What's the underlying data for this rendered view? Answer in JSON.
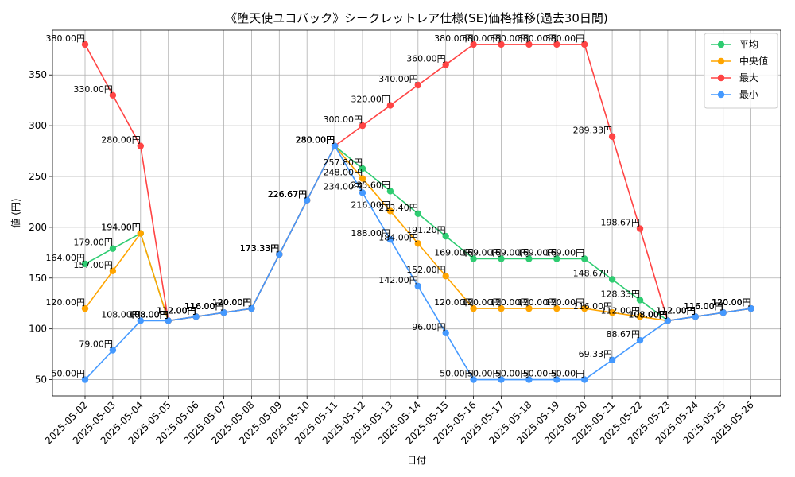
{
  "chart_data": {
    "type": "line",
    "title": "《堕天使ユコバック》シークレットレア仕様(SE)価格推移(過去30日間)",
    "xlabel": "日付",
    "ylabel": "値 (円)",
    "ylim": [
      34,
      394
    ],
    "yticks": [
      50,
      100,
      150,
      200,
      250,
      300,
      350
    ],
    "grid": true,
    "legend_position": "top-right",
    "value_suffix": "円",
    "categories": [
      "2025-05-02",
      "2025-05-03",
      "2025-05-04",
      "2025-05-05",
      "2025-05-06",
      "2025-05-07",
      "2025-05-08",
      "2025-05-09",
      "2025-05-10",
      "2025-05-11",
      "2025-05-12",
      "2025-05-13",
      "2025-05-14",
      "2025-05-15",
      "2025-05-16",
      "2025-05-17",
      "2025-05-18",
      "2025-05-19",
      "2025-05-20",
      "2025-05-21",
      "2025-05-22",
      "2025-05-23",
      "2025-05-24",
      "2025-05-25",
      "2025-05-26"
    ],
    "series": [
      {
        "name": "平均",
        "color": "#2ecc71",
        "values": [
          164.0,
          179.0,
          194.0,
          108.0,
          112.0,
          116.0,
          120.0,
          173.33,
          226.67,
          280.0,
          257.8,
          235.6,
          213.4,
          191.2,
          169.0,
          169.0,
          169.0,
          169.0,
          169.0,
          148.67,
          128.33,
          108.0,
          112.0,
          116.0,
          120.0
        ]
      },
      {
        "name": "中央値",
        "color": "#ffa500",
        "values": [
          120.0,
          157.0,
          194.0,
          108.0,
          112.0,
          116.0,
          120.0,
          173.33,
          226.67,
          280.0,
          248.0,
          216.0,
          184.0,
          152.0,
          120.0,
          120.0,
          120.0,
          120.0,
          120.0,
          116.0,
          112.0,
          108.0,
          112.0,
          116.0,
          120.0
        ]
      },
      {
        "name": "最大",
        "color": "#ff4444",
        "values": [
          380.0,
          330.0,
          280.0,
          108.0,
          112.0,
          116.0,
          120.0,
          173.33,
          226.67,
          280.0,
          300.0,
          320.0,
          340.0,
          360.0,
          380.0,
          380.0,
          380.0,
          380.0,
          380.0,
          289.33,
          198.67,
          108.0,
          112.0,
          116.0,
          120.0
        ]
      },
      {
        "name": "最小",
        "color": "#4499ff",
        "values": [
          50.0,
          79.0,
          108.0,
          108.0,
          112.0,
          116.0,
          120.0,
          173.33,
          226.67,
          280.0,
          234.0,
          188.0,
          142.0,
          96.0,
          50.0,
          50.0,
          50.0,
          50.0,
          50.0,
          69.33,
          88.67,
          108.0,
          112.0,
          116.0,
          120.0
        ]
      }
    ]
  }
}
